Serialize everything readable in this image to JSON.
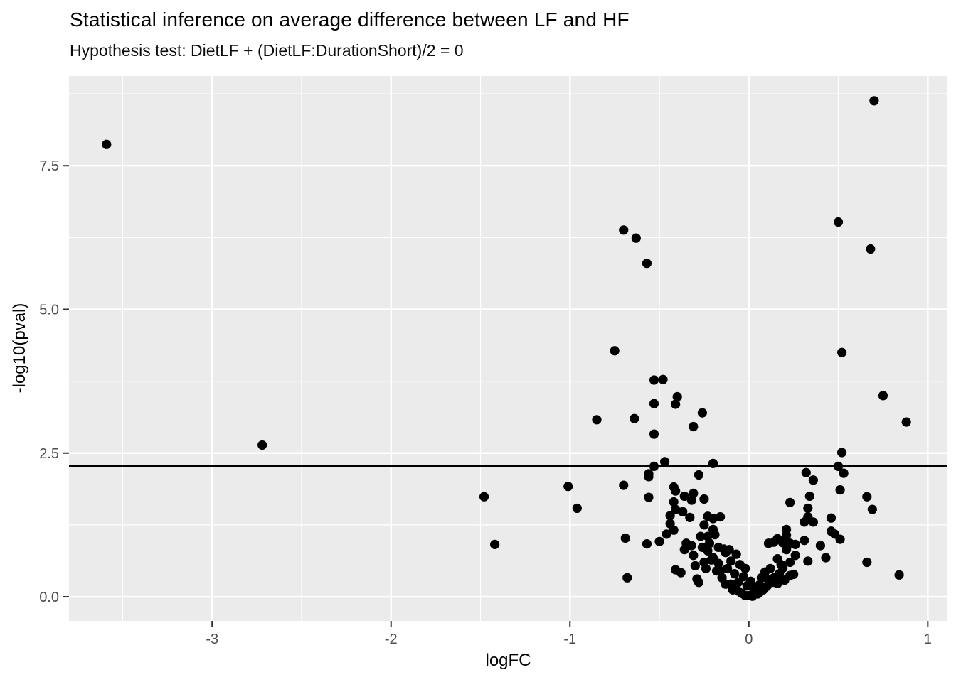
{
  "chart_data": {
    "type": "scatter",
    "title": "Statistical inference on average difference between LF and HF",
    "subtitle": "Hypothesis test: DietLF + (DietLF:DurationShort)/2 = 0",
    "xlabel": "logFC",
    "ylabel": "-log10(pval)",
    "xlim": [
      -3.8,
      1.11
    ],
    "ylim": [
      -0.42,
      9.06
    ],
    "legend": "none",
    "grid": true,
    "panel_background": "#EBEBEB",
    "grid_major_color": "#FFFFFF",
    "grid_minor_color": "#FFFFFF",
    "point_color": "#000000",
    "point_radius": 6.6,
    "axis_text_color": "#4d4d4d",
    "tick_color": "#333333",
    "x_ticks": [
      {
        "value": -3,
        "label": "-3"
      },
      {
        "value": -2,
        "label": "-2"
      },
      {
        "value": -1,
        "label": "-1"
      },
      {
        "value": 0,
        "label": "0"
      },
      {
        "value": 1,
        "label": "1"
      }
    ],
    "y_ticks": [
      {
        "value": 0,
        "label": "0.0"
      },
      {
        "value": 2.5,
        "label": "2.5"
      },
      {
        "value": 5,
        "label": "5.0"
      },
      {
        "value": 7.5,
        "label": "7.5"
      }
    ],
    "x_minor": [
      -3.5,
      -2.5,
      -1.5,
      -0.5,
      0.5
    ],
    "y_minor": [
      1.25,
      3.75,
      6.25,
      8.75
    ],
    "threshold_line": {
      "y": 2.28,
      "color": "#000000",
      "width": 3.2
    },
    "points": [
      [
        -3.59,
        7.87
      ],
      [
        -2.72,
        2.64
      ],
      [
        -0.7,
        6.38
      ],
      [
        -0.63,
        6.24
      ],
      [
        -0.57,
        5.8
      ],
      [
        -0.75,
        4.28
      ],
      [
        0.7,
        8.63
      ],
      [
        0.5,
        6.52
      ],
      [
        0.68,
        6.05
      ],
      [
        0.52,
        4.25
      ],
      [
        -0.53,
        3.77
      ],
      [
        -0.48,
        3.78
      ],
      [
        -0.4,
        3.48
      ],
      [
        -0.41,
        3.35
      ],
      [
        -0.53,
        3.36
      ],
      [
        -0.26,
        3.2
      ],
      [
        -0.64,
        3.1
      ],
      [
        -0.85,
        3.08
      ],
      [
        -0.31,
        2.96
      ],
      [
        -0.53,
        2.83
      ],
      [
        0.75,
        3.5
      ],
      [
        0.88,
        3.04
      ],
      [
        0.52,
        2.51
      ],
      [
        0.5,
        2.27
      ],
      [
        0.53,
        2.15
      ],
      [
        0.32,
        2.16
      ],
      [
        0.36,
        2.03
      ],
      [
        -0.53,
        2.27
      ],
      [
        -0.47,
        2.35
      ],
      [
        -0.2,
        2.32
      ],
      [
        -0.56,
        2.14
      ],
      [
        -0.28,
        2.12
      ],
      [
        -0.56,
        2.09
      ],
      [
        -1.48,
        1.74
      ],
      [
        -1.01,
        1.92
      ],
      [
        -0.96,
        1.54
      ],
      [
        -0.7,
        1.94
      ],
      [
        -0.56,
        1.73
      ],
      [
        -1.42,
        0.91
      ],
      [
        -0.69,
        1.02
      ],
      [
        -0.57,
        0.92
      ],
      [
        -0.68,
        0.33
      ],
      [
        -0.42,
        1.91
      ],
      [
        -0.41,
        1.84
      ],
      [
        -0.36,
        1.75
      ],
      [
        -0.31,
        1.8
      ],
      [
        -0.32,
        1.68
      ],
      [
        -0.25,
        1.7
      ],
      [
        -0.42,
        1.65
      ],
      [
        -0.41,
        1.52
      ],
      [
        -0.37,
        1.48
      ],
      [
        -0.44,
        1.41
      ],
      [
        -0.33,
        1.38
      ],
      [
        -0.23,
        1.4
      ],
      [
        -0.2,
        1.36
      ],
      [
        -0.16,
        1.39
      ],
      [
        -0.44,
        1.27
      ],
      [
        -0.42,
        1.16
      ],
      [
        -0.25,
        1.25
      ],
      [
        -0.2,
        1.17
      ],
      [
        -0.19,
        1.08
      ],
      [
        -0.23,
        1.05
      ],
      [
        -0.27,
        1.05
      ],
      [
        -0.46,
        1.09
      ],
      [
        -0.5,
        0.96
      ],
      [
        -0.35,
        0.93
      ],
      [
        -0.32,
        0.89
      ],
      [
        -0.26,
        0.86
      ],
      [
        -0.22,
        0.93
      ],
      [
        -0.17,
        0.86
      ],
      [
        0.51,
        1.86
      ],
      [
        0.23,
        1.64
      ],
      [
        0.34,
        1.75
      ],
      [
        0.33,
        1.54
      ],
      [
        0.33,
        1.39
      ],
      [
        0.31,
        1.3
      ],
      [
        0.36,
        1.3
      ],
      [
        0.46,
        1.37
      ],
      [
        0.46,
        1.14
      ],
      [
        0.48,
        1.09
      ],
      [
        0.21,
        1.17
      ],
      [
        0.21,
        1.07
      ],
      [
        0.51,
        1.0
      ],
      [
        0.31,
        0.98
      ],
      [
        0.16,
        1.01
      ],
      [
        0.19,
        0.94
      ],
      [
        0.14,
        0.95
      ],
      [
        0.11,
        0.93
      ],
      [
        0.23,
        0.93
      ],
      [
        0.26,
        0.91
      ],
      [
        0.4,
        0.89
      ],
      [
        0.66,
        1.74
      ],
      [
        0.69,
        1.52
      ],
      [
        0.66,
        0.6
      ],
      [
        0.84,
        0.38
      ],
      [
        -0.36,
        0.82
      ],
      [
        -0.31,
        0.72
      ],
      [
        -0.23,
        0.8
      ],
      [
        -0.2,
        0.68
      ],
      [
        -0.14,
        0.83
      ],
      [
        -0.11,
        0.82
      ],
      [
        -0.41,
        0.47
      ],
      [
        -0.38,
        0.42
      ],
      [
        -0.3,
        0.54
      ],
      [
        -0.29,
        0.31
      ],
      [
        -0.28,
        0.25
      ],
      [
        -0.24,
        0.49
      ],
      [
        -0.25,
        0.6
      ],
      [
        -0.17,
        0.58
      ],
      [
        -0.18,
        0.45
      ],
      [
        -0.15,
        0.33
      ],
      [
        -0.21,
        0.64
      ],
      [
        -0.13,
        0.77
      ],
      [
        -0.1,
        0.62
      ],
      [
        -0.07,
        0.74
      ],
      [
        -0.05,
        0.56
      ],
      [
        -0.12,
        0.49
      ],
      [
        -0.08,
        0.4
      ],
      [
        -0.03,
        0.35
      ],
      [
        -0.06,
        0.25
      ],
      [
        -0.01,
        0.19
      ],
      [
        -0.09,
        0.12
      ],
      [
        -0.04,
        0.06
      ],
      [
        0.0,
        0.02
      ],
      [
        -0.13,
        0.22
      ],
      [
        -0.02,
        0.49
      ],
      [
        0.01,
        0.27
      ],
      [
        0.21,
        0.82
      ],
      [
        0.26,
        0.72
      ],
      [
        0.43,
        0.68
      ],
      [
        0.33,
        0.62
      ],
      [
        0.16,
        0.66
      ],
      [
        0.18,
        0.56
      ],
      [
        0.23,
        0.6
      ],
      [
        0.23,
        0.37
      ],
      [
        0.25,
        0.39
      ],
      [
        0.2,
        0.29
      ],
      [
        0.16,
        0.23
      ],
      [
        0.14,
        0.33
      ],
      [
        0.12,
        0.49
      ],
      [
        0.09,
        0.43
      ],
      [
        0.11,
        0.29
      ],
      [
        0.07,
        0.33
      ],
      [
        0.06,
        0.21
      ],
      [
        0.09,
        0.16
      ],
      [
        0.04,
        0.1
      ],
      [
        0.02,
        0.04
      ],
      [
        0.03,
        0.15
      ],
      [
        0.05,
        0.05
      ],
      [
        -0.16,
        0.45
      ],
      [
        -0.1,
        0.22
      ],
      [
        -0.06,
        0.1
      ],
      [
        0.08,
        0.12
      ],
      [
        0.1,
        0.18
      ],
      [
        0.13,
        0.25
      ],
      [
        0.15,
        0.32
      ],
      [
        0.17,
        0.4
      ],
      [
        0.19,
        0.5
      ],
      [
        -0.02,
        0.02
      ],
      [
        0.02,
        0.01
      ]
    ]
  }
}
